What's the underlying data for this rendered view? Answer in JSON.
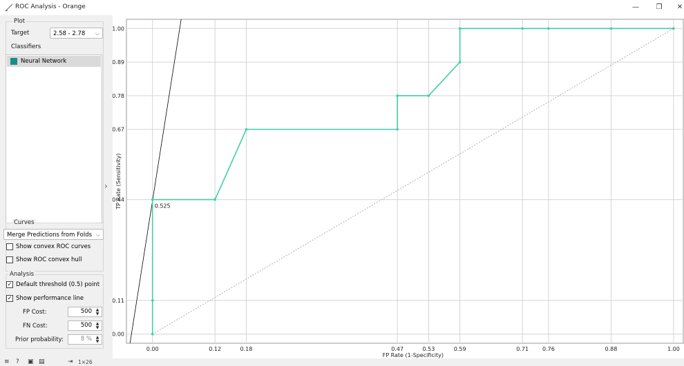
{
  "window": {
    "title": "ROC Analysis - Orange",
    "minimize": "—",
    "restore": "❐",
    "close": "✕"
  },
  "plot_group": {
    "title": "Plot",
    "target_label": "Target",
    "target_value": "2.58 - 2.78",
    "classifiers_label": "Classifiers",
    "classifiers": [
      {
        "name": "Neural Network",
        "color": "#1b8a8a"
      }
    ]
  },
  "curves_group": {
    "title": "Curves",
    "merge_value": "Merge Predictions from Folds",
    "show_convex_curves": {
      "label": "Show convex ROC curves",
      "checked": false
    },
    "show_convex_hull": {
      "label": "Show ROC convex hull",
      "checked": false
    }
  },
  "analysis_group": {
    "title": "Analysis",
    "default_threshold": {
      "label": "Default threshold (0.5) point",
      "checked": true
    },
    "performance_line": {
      "label": "Show performance line",
      "checked": true
    },
    "fp_cost_label": "FP Cost:",
    "fp_cost_value": "500",
    "fn_cost_label": "FN Cost:",
    "fn_cost_value": "500",
    "prior_label": "Prior probability:",
    "prior_value": "8 %"
  },
  "statusbar": {
    "size_text": "1×26"
  },
  "chart_data": {
    "type": "line",
    "xlabel": "FP Rate (1-Specificity)",
    "ylabel": "TP Rate (Sensitivity)",
    "x_ticks": [
      "0.00",
      "0.12",
      "0.18",
      "0.47",
      "0.53",
      "0.59",
      "0.71",
      "0.76",
      "0.88",
      "1.00"
    ],
    "y_ticks": [
      "0.00",
      "0.11",
      "0.44",
      "0.67",
      "0.78",
      "0.89",
      "1.00"
    ],
    "xlim": [
      -0.05,
      1.02
    ],
    "ylim": [
      -0.03,
      1.03
    ],
    "grid": true,
    "series": [
      {
        "color": "#3fd0a8",
        "x": [
          0.0,
          0.0,
          0.0,
          0.12,
          0.18,
          0.47,
          0.47,
          0.53,
          0.59,
          0.59,
          0.71,
          0.76,
          0.88,
          1.0
        ],
        "y": [
          0.0,
          0.11,
          0.44,
          0.44,
          0.67,
          0.67,
          0.78,
          0.78,
          0.89,
          1.0,
          1.0,
          1.0,
          1.0,
          1.0
        ]
      }
    ],
    "diagonal": {
      "x": [
        0,
        1
      ],
      "y": [
        0,
        1
      ],
      "color": "#b0b0b0"
    },
    "performance_line": {
      "x": [
        -0.045,
        0.055
      ],
      "y": [
        -0.05,
        1.03
      ],
      "color": "#000000"
    },
    "annotations": [
      {
        "text": "0.525",
        "x": 0.0,
        "y": 0.44
      }
    ]
  }
}
